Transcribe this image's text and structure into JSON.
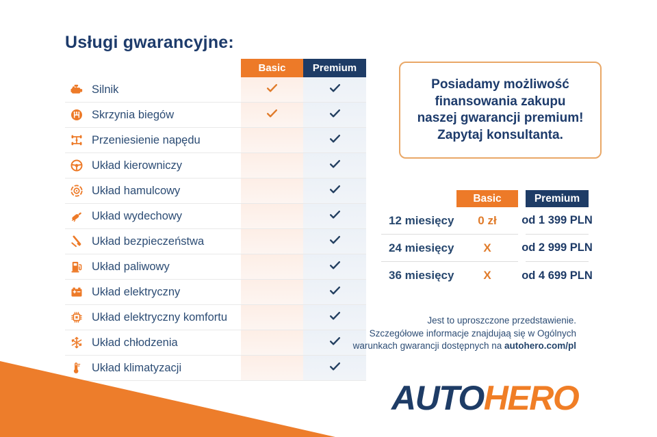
{
  "page": {
    "title": "Usługi gwarancyjne:"
  },
  "colors": {
    "orange": "#ed7a28",
    "navy": "#1e3c66",
    "check_navy": "#233f60",
    "check_orange": "#e07b2a"
  },
  "warranty_table": {
    "columns": [
      "Basic",
      "Premium"
    ],
    "rows": [
      {
        "icon": "engine-icon",
        "label": "Silnik",
        "basic": true,
        "premium": true
      },
      {
        "icon": "gearbox-icon",
        "label": "Skrzynia biegów",
        "basic": true,
        "premium": true
      },
      {
        "icon": "drivetrain-icon",
        "label": "Przeniesienie napędu",
        "basic": false,
        "premium": true
      },
      {
        "icon": "steering-wheel-icon",
        "label": "Układ kierowniczy",
        "basic": false,
        "premium": true
      },
      {
        "icon": "brake-disc-icon",
        "label": "Układ hamulcowy",
        "basic": false,
        "premium": true
      },
      {
        "icon": "exhaust-icon",
        "label": "Układ wydechowy",
        "basic": false,
        "premium": true
      },
      {
        "icon": "seatbelt-icon",
        "label": "Układ bezpieczeństwa",
        "basic": false,
        "premium": true
      },
      {
        "icon": "fuel-pump-icon",
        "label": "Układ paliwowy",
        "basic": false,
        "premium": true
      },
      {
        "icon": "battery-icon",
        "label": "Układ elektryczny",
        "basic": false,
        "premium": true
      },
      {
        "icon": "chip-icon",
        "label": "Układ elektryczny komfortu",
        "basic": false,
        "premium": true
      },
      {
        "icon": "snowflake-icon",
        "label": "Układ chłodzenia",
        "basic": false,
        "premium": true
      },
      {
        "icon": "thermometer-icon",
        "label": "Układ klimatyzacji",
        "basic": false,
        "premium": true
      }
    ]
  },
  "promo_box": {
    "lines": [
      "Posiadamy możliwość",
      "finansowania zakupu",
      "naszej gwarancji premium!",
      "Zapytaj konsultanta."
    ]
  },
  "pricing_table": {
    "columns": [
      "Basic",
      "Premium"
    ],
    "rows": [
      {
        "label": "12 miesięcy",
        "basic": "0 zł",
        "premium": "od 1 399 PLN"
      },
      {
        "label": "24 miesięcy",
        "basic": "X",
        "premium": "od 2 999 PLN"
      },
      {
        "label": "36 miesięcy",
        "basic": "X",
        "premium": "od 4 699 PLN"
      }
    ]
  },
  "disclaimer": {
    "lines": [
      "Jest to uproszczone przedstawienie.",
      "Szczegółowe informacje znajdujaą się w Ogólnych"
    ],
    "line3_prefix": "warunkach gwarancji dostępnych na ",
    "link_bold": "autohero.com/pl"
  },
  "logo": {
    "part1": "AUTO",
    "part2": "HERO"
  }
}
